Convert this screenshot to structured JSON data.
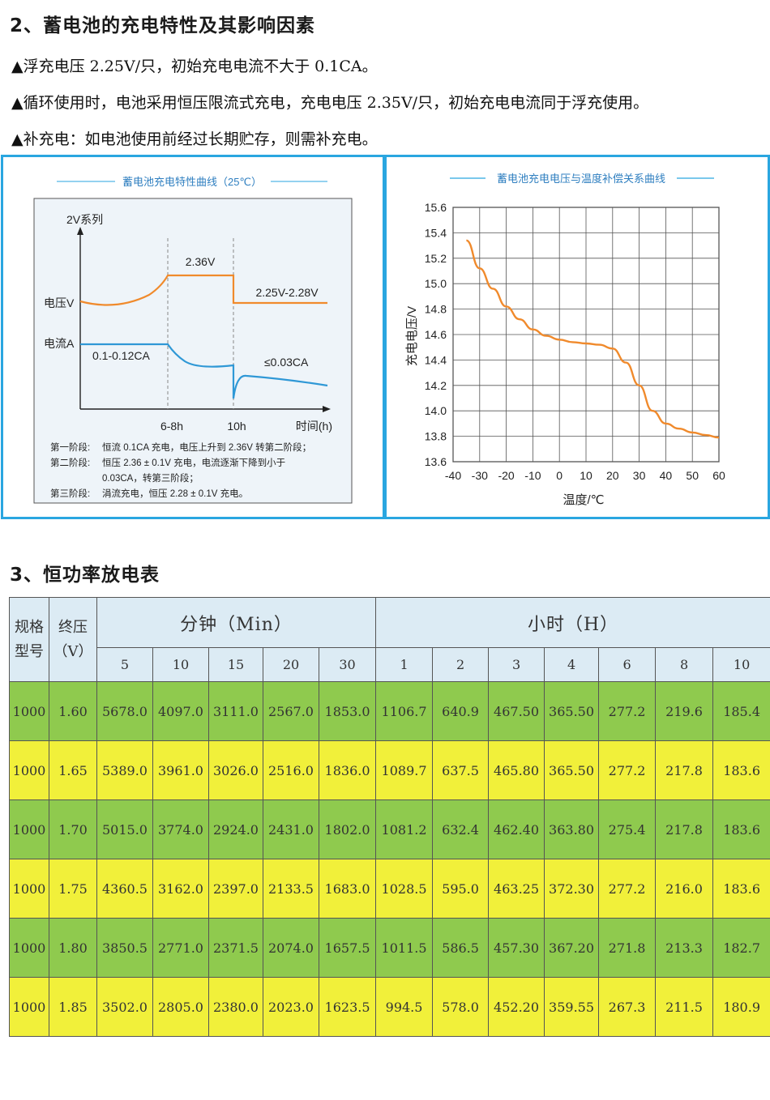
{
  "section2": {
    "title": "2、蓄电池的充电特性及其影响因素",
    "bullets": [
      "▲浮充电压 2.25V/只，初始充电电流不大于 0.1CA。",
      "▲循环使用时，电池采用恒压限流式充电，充电电压 2.35V/只，初始充电电流同于浮充使用。",
      "▲补充电：如电池使用前经过长期贮存，则需补充电。"
    ]
  },
  "charge_chart": {
    "title": "蓄电池充电特性曲线（25℃）",
    "series_label": "2V系列",
    "y_voltage_label": "电压V",
    "y_current_label": "电流A",
    "label_236": "2.36V",
    "label_225": "2.25V-2.28V",
    "label_current_start": "0.1-0.12CA",
    "label_current_end": "≤0.03CA",
    "x_label_1": "6-8h",
    "x_label_2": "10h",
    "x_axis_label": "时间(h)",
    "stage1_head": "第一阶段:",
    "stage1_text": "恒流 0.1CA 充电，电压上升到 2.36V 转第二阶段；",
    "stage2_head": "第二阶段:",
    "stage2_text_1": "恒压 2.36 ± 0.1V 充电，电流逐渐下降到小于",
    "stage2_text_2": "0.03CA，转第三阶段；",
    "stage3_head": "第三阶段:",
    "stage3_text": "涓流充电，恒压 2.28 ± 0.1V 充电。",
    "voltage_color": "#f08a2c",
    "current_color": "#2f98d6"
  },
  "chart_data": {
    "type": "line",
    "title": "蓄电池充电电压与温度补偿关系曲线",
    "xlabel": "温度/℃",
    "ylabel": "充电电压/V",
    "xlim": [
      -40,
      60
    ],
    "ylim": [
      13.6,
      15.6
    ],
    "x_ticks": [
      "-40",
      "-30",
      "-20",
      "-10",
      "0",
      "10",
      "20",
      "30",
      "40",
      "50",
      "60"
    ],
    "y_ticks": [
      "13.6",
      "13.8",
      "14.0",
      "14.2",
      "14.4",
      "14.6",
      "14.8",
      "15.0",
      "15.2",
      "15.4",
      "15.6"
    ],
    "grid": true,
    "color": "#f08a2c",
    "x": [
      -35,
      -30,
      -25,
      -20,
      -15,
      -10,
      -5,
      0,
      5,
      10,
      15,
      20,
      25,
      30,
      35,
      40,
      45,
      50,
      55,
      60
    ],
    "y": [
      15.34,
      15.12,
      14.96,
      14.82,
      14.72,
      14.64,
      14.59,
      14.56,
      14.54,
      14.53,
      14.52,
      14.49,
      14.38,
      14.2,
      14.0,
      13.9,
      13.86,
      13.83,
      13.81,
      13.79
    ]
  },
  "section3": {
    "title": "3、恒功率放电表"
  },
  "table": {
    "spec_head": "规格型号",
    "endv_head": "终压（V）",
    "min_group": "分钟（Min）",
    "hour_group": "小时（H）",
    "min_cols": [
      "5",
      "10",
      "15",
      "20",
      "30"
    ],
    "hour_cols": [
      "1",
      "2",
      "3",
      "4",
      "6",
      "8",
      "10"
    ],
    "rows": [
      [
        "1000",
        "1.60",
        "5678.0",
        "4097.0",
        "3111.0",
        "2567.0",
        "1853.0",
        "1106.7",
        "640.9",
        "467.50",
        "365.50",
        "277.2",
        "219.6",
        "185.4"
      ],
      [
        "1000",
        "1.65",
        "5389.0",
        "3961.0",
        "3026.0",
        "2516.0",
        "1836.0",
        "1089.7",
        "637.5",
        "465.80",
        "365.50",
        "277.2",
        "217.8",
        "183.6"
      ],
      [
        "1000",
        "1.70",
        "5015.0",
        "3774.0",
        "2924.0",
        "2431.0",
        "1802.0",
        "1081.2",
        "632.4",
        "462.40",
        "363.80",
        "275.4",
        "217.8",
        "183.6"
      ],
      [
        "1000",
        "1.75",
        "4360.5",
        "3162.0",
        "2397.0",
        "2133.5",
        "1683.0",
        "1028.5",
        "595.0",
        "463.25",
        "372.30",
        "277.2",
        "216.0",
        "183.6"
      ],
      [
        "1000",
        "1.80",
        "3850.5",
        "2771.0",
        "2371.5",
        "2074.0",
        "1657.5",
        "1011.5",
        "586.5",
        "457.30",
        "367.20",
        "271.8",
        "213.3",
        "182.7"
      ],
      [
        "1000",
        "1.85",
        "3502.0",
        "2805.0",
        "2380.0",
        "2023.0",
        "1623.5",
        "994.5",
        "578.0",
        "452.20",
        "359.55",
        "267.3",
        "211.5",
        "180.9"
      ]
    ],
    "row_colors": [
      "#8fca4e",
      "#f1f03a"
    ]
  }
}
